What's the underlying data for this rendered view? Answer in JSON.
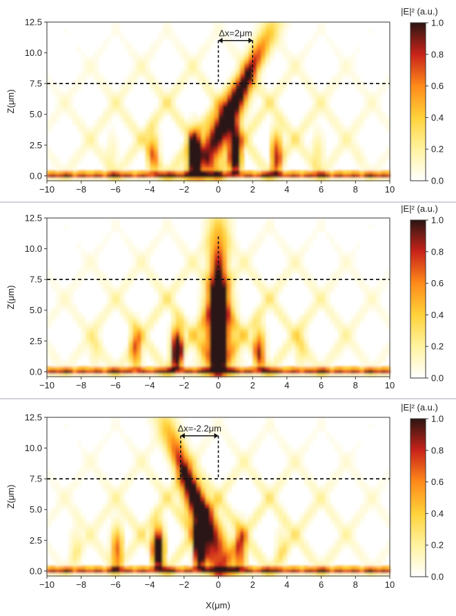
{
  "chart_data": [
    {
      "type": "heatmap",
      "panel": "top",
      "xlabel": "",
      "ylabel": "Z(μm)",
      "xlim": [
        -10,
        10
      ],
      "ylim": [
        -0.4,
        12.5
      ],
      "x_ticks": [
        "−10",
        "−8",
        "−6",
        "−4",
        "−2",
        "0",
        "2",
        "4",
        "6",
        "8",
        "10"
      ],
      "y_ticks": [
        "0.0",
        "2.5",
        "5.0",
        "7.5",
        "10.0",
        "12.5"
      ],
      "colorbar": {
        "title": "|E|² (a.u.)",
        "ticks": [
          "0.0",
          "0.2",
          "0.4",
          "0.6",
          "0.8",
          "1.0"
        ],
        "range": [
          0,
          1
        ]
      },
      "reference_line_z": 7.5,
      "annotation": {
        "text": "Δx=2μm",
        "x_from": 0,
        "x_to": 2,
        "z": 11.0
      },
      "beam_tilt": 0.35,
      "beam_focus_x": 2.0
    },
    {
      "type": "heatmap",
      "panel": "middle",
      "xlabel": "",
      "ylabel": "Z(μm)",
      "xlim": [
        -10,
        10
      ],
      "ylim": [
        -0.4,
        12.5
      ],
      "x_ticks": [
        "−10",
        "−8",
        "−6",
        "−4",
        "−2",
        "0",
        "2",
        "4",
        "6",
        "8",
        "10"
      ],
      "y_ticks": [
        "0.0",
        "2.5",
        "5.0",
        "7.5",
        "10.0",
        "12.5"
      ],
      "colorbar": {
        "title": "|E|² (a.u.)",
        "ticks": [
          "0.0",
          "0.2",
          "0.4",
          "0.6",
          "0.8",
          "1.0"
        ],
        "range": [
          0,
          1
        ]
      },
      "reference_line_z": 7.5,
      "annotation": {
        "text": "",
        "x_from": 0,
        "x_to": 0,
        "z": 11.0
      },
      "beam_tilt": 0.0,
      "beam_focus_x": 0.0
    },
    {
      "type": "heatmap",
      "panel": "bottom",
      "xlabel": "X(μm)",
      "ylabel": "Z(μm)",
      "xlim": [
        -10,
        10
      ],
      "ylim": [
        -0.4,
        12.5
      ],
      "x_ticks": [
        "−10",
        "−8",
        "−6",
        "−4",
        "−2",
        "0",
        "2",
        "4",
        "6",
        "8",
        "10"
      ],
      "y_ticks": [
        "0.0",
        "2.5",
        "5.0",
        "7.5",
        "10.0",
        "12.5"
      ],
      "colorbar": {
        "title": "|E|² (a.u.)",
        "ticks": [
          "0.0",
          "0.2",
          "0.4",
          "0.6",
          "0.8",
          "1.0"
        ],
        "range": [
          0,
          1
        ]
      },
      "reference_line_z": 7.5,
      "annotation": {
        "text": "Δx=-2.2μm",
        "x_from": 0,
        "x_to": -2.2,
        "z": 11.0
      },
      "beam_tilt": -0.28,
      "beam_focus_x": -2.2
    }
  ]
}
